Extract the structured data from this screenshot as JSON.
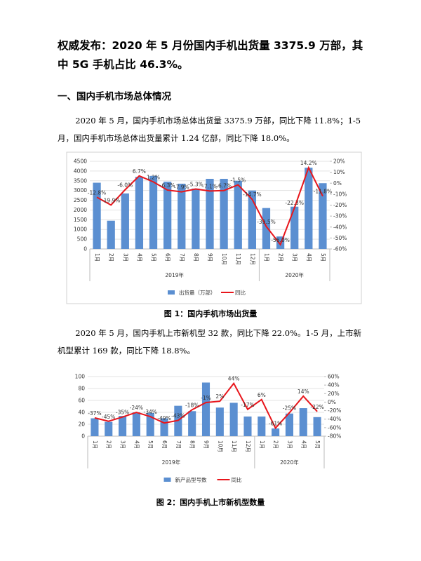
{
  "title": "权威发布：2020 年 5 月份国内手机出货量 3375.9 万部，其中 5G 手机占比 46.3%。",
  "section_heading": "一、国内手机市场总体情况",
  "paragraphs": [
    "2020 年 5 月，国内手机市场总体出货量 3375.9 万部，同比下降 11.8%；1-5 月，国内手机市场总体出货量累计 1.24 亿部，同比下降 18.0%。",
    "2020 年 5 月，国内手机上市新机型 32 款，同比下降 22.0%。1-5 月，上市新机型累计 169 款，同比下降 18.8%。"
  ],
  "chart_data": [
    {
      "type": "combo",
      "caption": "图 1：国内手机市场出货量",
      "category_groups": [
        {
          "label": "2019年",
          "categories": [
            "1月",
            "2月",
            "3月",
            "4月",
            "5月",
            "6月",
            "7月",
            "8月",
            "9月",
            "10月",
            "11月",
            "12月"
          ]
        },
        {
          "label": "2020年",
          "categories": [
            "1月",
            "2月",
            "3月",
            "4月",
            "5月"
          ]
        }
      ],
      "ylim": [
        0,
        4500
      ],
      "yticks": [
        0,
        500,
        1000,
        1500,
        2000,
        2500,
        3000,
        3500,
        4000,
        4500
      ],
      "y2lim": [
        -60,
        20
      ],
      "y2ticks": [
        {
          "value": -60,
          "label": "-60%"
        },
        {
          "value": -50,
          "label": "-50%"
        },
        {
          "value": -40,
          "label": "-40%"
        },
        {
          "value": -30,
          "label": "-30%"
        },
        {
          "value": -20,
          "label": "-20%"
        },
        {
          "value": -10,
          "label": "-10%"
        },
        {
          "value": 0,
          "label": "0%"
        },
        {
          "value": 10,
          "label": "10%"
        },
        {
          "value": 20,
          "label": "20%"
        }
      ],
      "grid": true,
      "series": [
        {
          "name": "出货量（万部）",
          "type": "bar",
          "color": "#5b8fd1",
          "values": [
            3400,
            1450,
            2850,
            3700,
            3750,
            3450,
            3350,
            3100,
            3600,
            3600,
            3500,
            3000,
            2100,
            640,
            2170,
            4170,
            3375.9
          ]
        },
        {
          "name": "同比",
          "type": "line",
          "axis": "y2",
          "color": "#e8161c",
          "values": [
            -12.8,
            -19.9,
            -6.0,
            6.7,
            1.2,
            -6.3,
            -7.9,
            -5.3,
            -7.1,
            -6.7,
            -1.5,
            -14.7,
            -39.5,
            -56.0,
            -22.3,
            14.2,
            -11.8
          ],
          "value_labels": [
            "-12.8%",
            "-19.9%",
            "-6.0%",
            "6.7%",
            "1.2%",
            "-6.3%",
            "-7.9%",
            "-5.3%",
            "-7.1%",
            "-6.7%",
            "-1.5%",
            "-14.7%",
            "-39.5%",
            "-56.0%",
            "-22.3%",
            "14.2%",
            "-11.8%"
          ]
        }
      ]
    },
    {
      "type": "combo",
      "caption": "图 2：国内手机上市新机型数量",
      "category_groups": [
        {
          "label": "2019年",
          "categories": [
            "1月",
            "2月",
            "3月",
            "4月",
            "5月",
            "6月",
            "7月",
            "8月",
            "9月",
            "10月",
            "11月",
            "12月"
          ]
        },
        {
          "label": "2020年",
          "categories": [
            "1月",
            "2月",
            "3月",
            "4月",
            "5月"
          ]
        }
      ],
      "ylim": [
        0,
        100
      ],
      "yticks": [
        0,
        20,
        40,
        60,
        80,
        100
      ],
      "y2lim": [
        -80,
        60
      ],
      "y2ticks": [
        {
          "value": -80,
          "label": "-80%"
        },
        {
          "value": -60,
          "label": "-60%"
        },
        {
          "value": -40,
          "label": "-40%"
        },
        {
          "value": -20,
          "label": "-20%"
        },
        {
          "value": 0,
          "label": "0%"
        },
        {
          "value": 20,
          "label": "20%"
        },
        {
          "value": 40,
          "label": "40%"
        },
        {
          "value": 60,
          "label": "60%"
        }
      ],
      "grid": true,
      "series": [
        {
          "name": "新产品型号数",
          "type": "bar",
          "color": "#5b8fd1",
          "values": [
            30,
            24,
            34,
            40,
            39,
            30,
            51,
            42,
            90,
            48,
            56,
            33,
            33,
            13,
            38,
            47,
            32
          ]
        },
        {
          "name": "同比",
          "type": "line",
          "axis": "y2",
          "color": "#e8161c",
          "values": [
            -37,
            -45,
            -35,
            -24,
            -34,
            -49,
            -43,
            -18,
            -1,
            2,
            44,
            -17,
            6,
            -61,
            -25,
            14,
            -22
          ],
          "value_labels": [
            "-37%",
            "-45%",
            "-35%",
            "-24%",
            "-34%",
            "-49%",
            "-43%",
            "-18%",
            "-1%",
            "2%",
            "44%",
            "-17%",
            "6%",
            "-61%",
            "-25%",
            "14%",
            "-22%"
          ]
        }
      ]
    }
  ]
}
